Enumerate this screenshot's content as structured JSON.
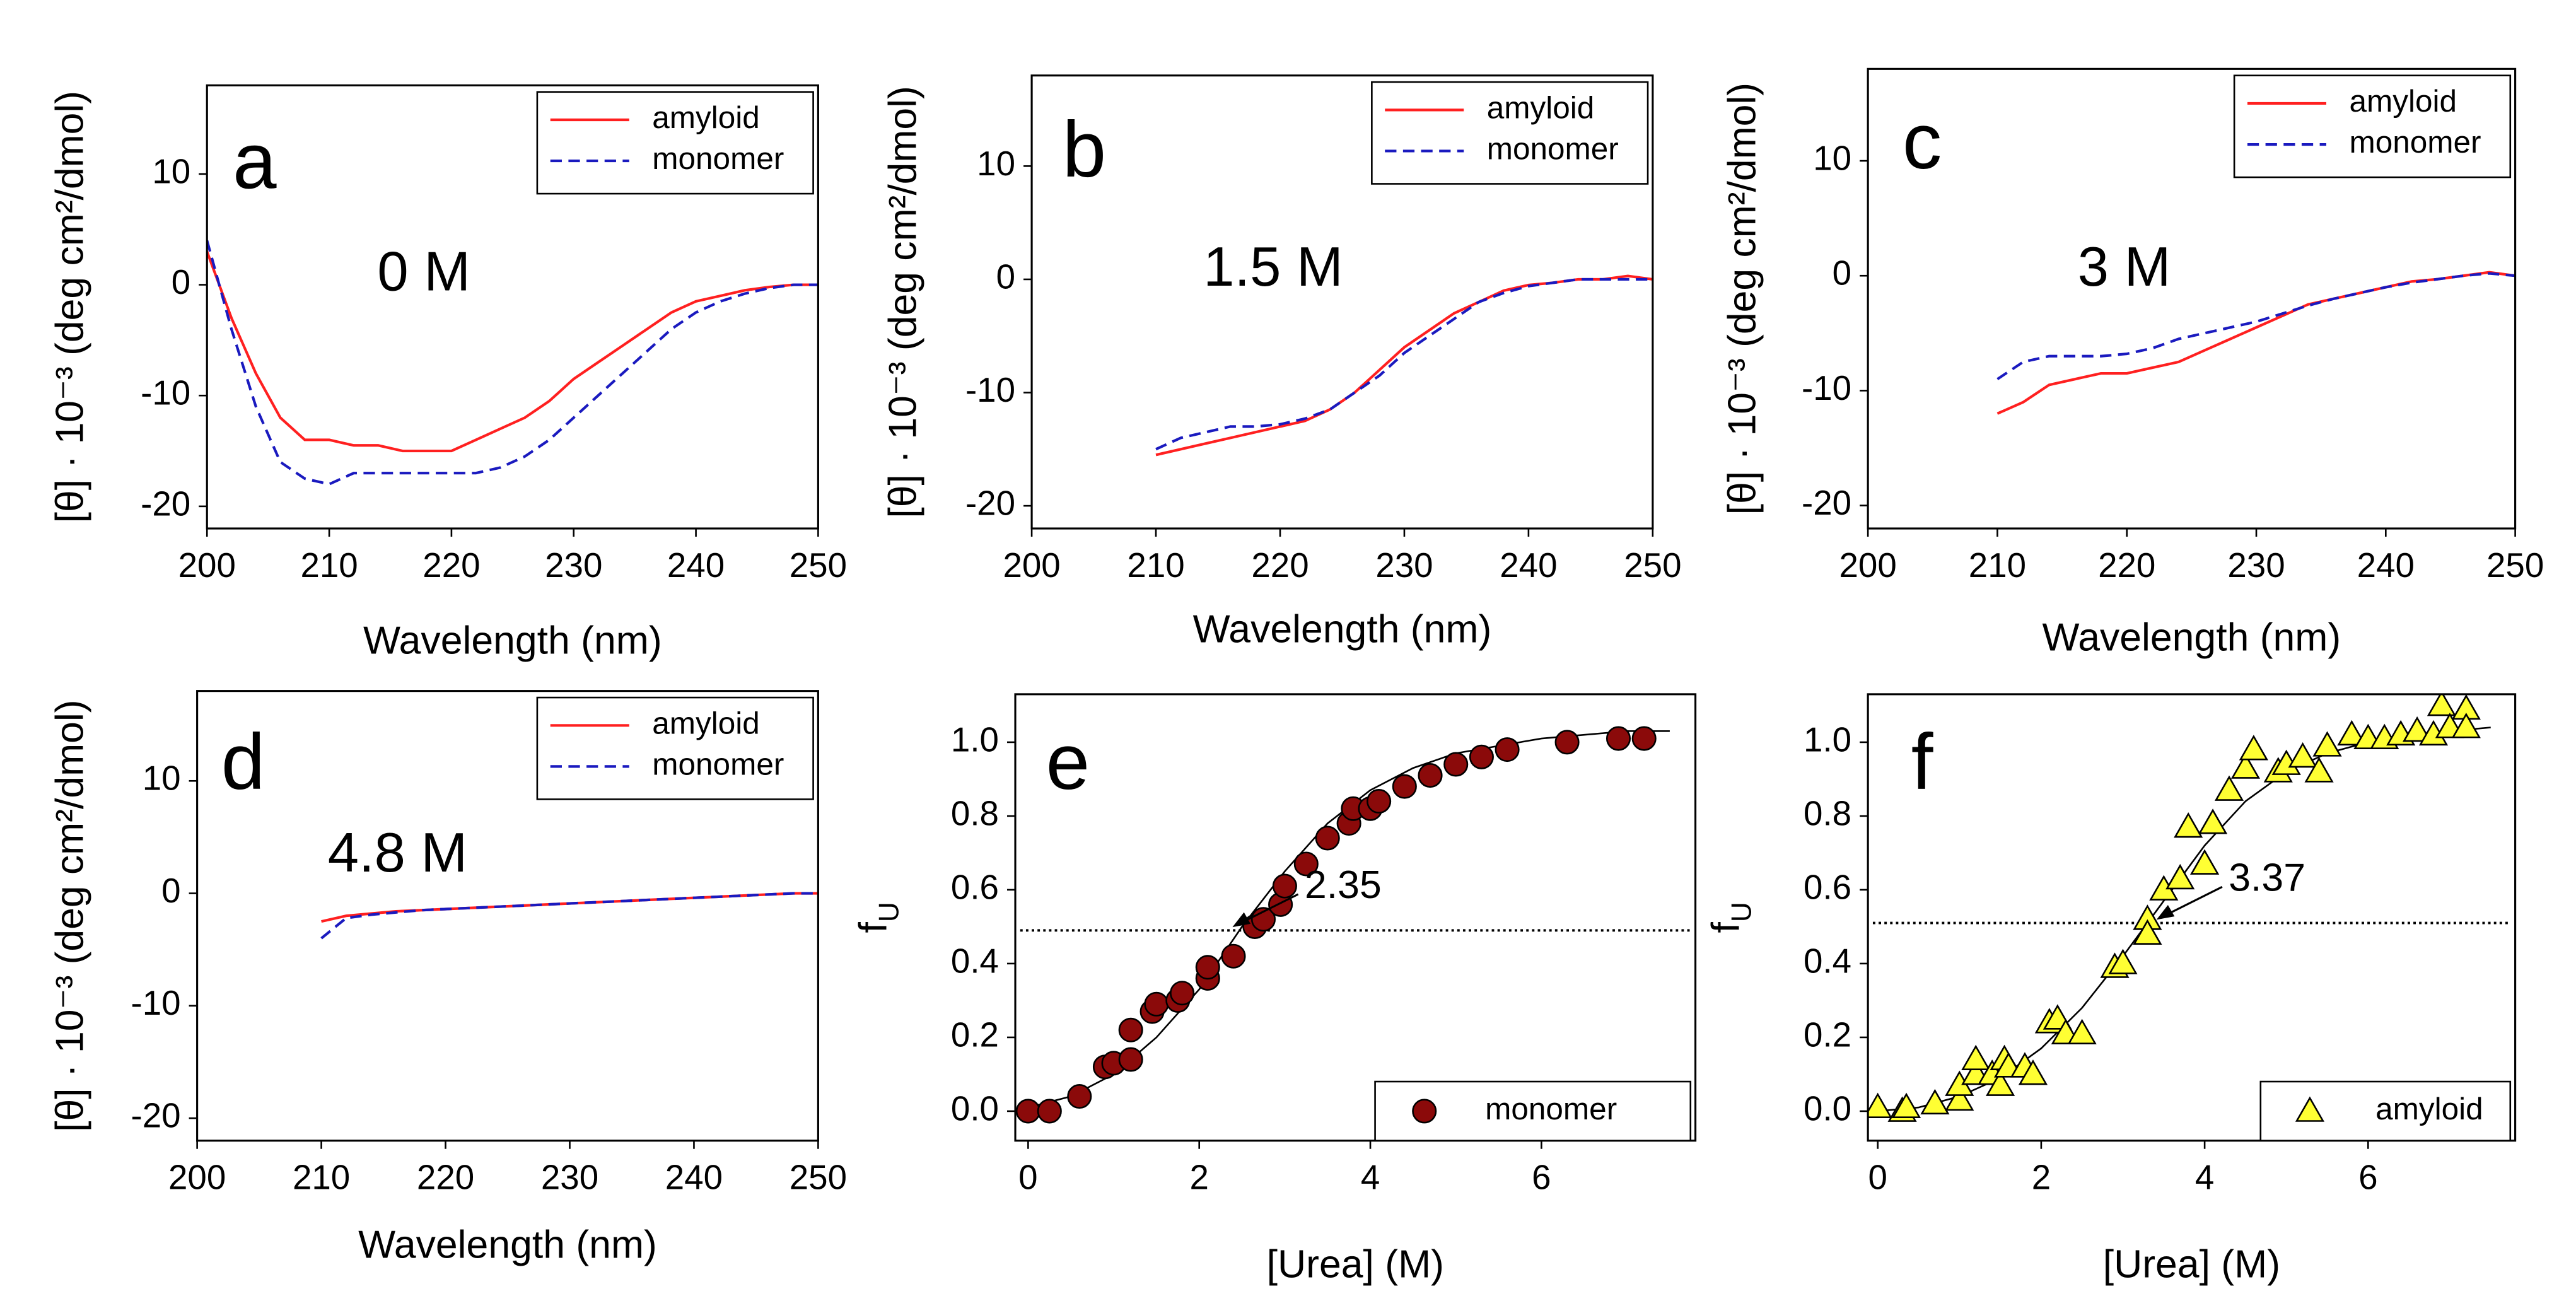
{
  "chart_data": [
    {
      "type": "line",
      "panel_label": "a",
      "annotation": "0 M",
      "xlabel": "Wavelength (nm)",
      "ylabel": "[θ] · 10⁻³ (deg cm²/dmol)",
      "xlim": [
        200,
        250
      ],
      "ylim": [
        -22,
        18
      ],
      "xticks": [
        200,
        210,
        220,
        230,
        240,
        250
      ],
      "yticks": [
        -20,
        -10,
        0,
        10
      ],
      "legend": "upper right",
      "x": [
        200,
        202,
        204,
        206,
        208,
        210,
        212,
        214,
        216,
        218,
        220,
        222,
        224,
        226,
        228,
        230,
        232,
        234,
        236,
        238,
        240,
        242,
        244,
        246,
        248,
        250
      ],
      "series": [
        {
          "name": "amyloid",
          "color": "#ff2020",
          "style": "solid",
          "values": [
            3,
            -3,
            -8,
            -12,
            -14,
            -14,
            -14.5,
            -14.5,
            -15,
            -15,
            -15,
            -14,
            -13,
            -12,
            -10.5,
            -8.5,
            -7,
            -5.5,
            -4,
            -2.5,
            -1.5,
            -1,
            -0.5,
            -0.2,
            0,
            0
          ]
        },
        {
          "name": "monomer",
          "color": "#1a1abf",
          "style": "dashed",
          "values": [
            4,
            -4,
            -11,
            -16,
            -17.5,
            -18,
            -17,
            -17,
            -17,
            -17,
            -17,
            -17,
            -16.5,
            -15.5,
            -14,
            -12,
            -10,
            -8,
            -6,
            -4,
            -2.5,
            -1.5,
            -0.8,
            -0.3,
            0,
            0
          ]
        }
      ]
    },
    {
      "type": "line",
      "panel_label": "b",
      "annotation": "1.5 M",
      "xlabel": "Wavelength (nm)",
      "ylabel": "[θ] · 10⁻³ (deg cm²/dmol)",
      "xlim": [
        200,
        250
      ],
      "ylim": [
        -22,
        18
      ],
      "xticks": [
        200,
        210,
        220,
        230,
        240,
        250
      ],
      "yticks": [
        -20,
        -10,
        0,
        10
      ],
      "legend": "upper right",
      "x": [
        210,
        212,
        214,
        216,
        218,
        220,
        222,
        224,
        226,
        228,
        230,
        232,
        234,
        236,
        238,
        240,
        242,
        244,
        246,
        248,
        250
      ],
      "series": [
        {
          "name": "amyloid",
          "color": "#ff2020",
          "style": "solid",
          "values": [
            -15.5,
            -15,
            -14.5,
            -14,
            -13.5,
            -13,
            -12.5,
            -11.5,
            -10,
            -8,
            -6,
            -4.5,
            -3,
            -2,
            -1,
            -0.5,
            -0.3,
            0,
            0,
            0.3,
            0
          ]
        },
        {
          "name": "monomer",
          "color": "#1a1abf",
          "style": "dashed",
          "values": [
            -15,
            -14,
            -13.5,
            -13,
            -13,
            -12.8,
            -12.3,
            -11.5,
            -10,
            -8.5,
            -6.5,
            -5,
            -3.5,
            -2,
            -1.2,
            -0.6,
            -0.3,
            0,
            0,
            0,
            0
          ]
        }
      ]
    },
    {
      "type": "line",
      "panel_label": "c",
      "annotation": "3 M",
      "xlabel": "Wavelength (nm)",
      "ylabel": "[θ] · 10⁻³ (deg cm²/dmol)",
      "xlim": [
        200,
        250
      ],
      "ylim": [
        -22,
        18
      ],
      "xticks": [
        200,
        210,
        220,
        230,
        240,
        250
      ],
      "yticks": [
        -20,
        -10,
        0,
        10
      ],
      "legend": "upper right",
      "x": [
        210,
        212,
        214,
        216,
        218,
        220,
        222,
        224,
        226,
        228,
        230,
        232,
        234,
        236,
        238,
        240,
        242,
        244,
        246,
        248,
        250
      ],
      "series": [
        {
          "name": "amyloid",
          "color": "#ff2020",
          "style": "solid",
          "values": [
            -12,
            -11,
            -9.5,
            -9,
            -8.5,
            -8.5,
            -8,
            -7.5,
            -6.5,
            -5.5,
            -4.5,
            -3.5,
            -2.5,
            -2,
            -1.5,
            -1,
            -0.5,
            -0.3,
            0,
            0.3,
            0
          ]
        },
        {
          "name": "monomer",
          "color": "#1a1abf",
          "style": "dashed",
          "values": [
            -9,
            -7.5,
            -7,
            -7,
            -7,
            -6.8,
            -6.3,
            -5.5,
            -5,
            -4.5,
            -4,
            -3.3,
            -2.6,
            -2,
            -1.5,
            -1,
            -0.6,
            -0.3,
            0,
            0.2,
            0
          ]
        }
      ]
    },
    {
      "type": "line",
      "panel_label": "d",
      "annotation": "4.8 M",
      "xlabel": "Wavelength (nm)",
      "ylabel": "[θ] · 10⁻³ (deg cm²/dmol)",
      "xlim": [
        200,
        250
      ],
      "ylim": [
        -22,
        18
      ],
      "xticks": [
        200,
        210,
        220,
        230,
        240,
        250
      ],
      "yticks": [
        -20,
        -10,
        0,
        10
      ],
      "legend": "upper right",
      "x": [
        210,
        212,
        214,
        216,
        218,
        220,
        222,
        224,
        226,
        228,
        230,
        232,
        234,
        236,
        238,
        240,
        242,
        244,
        246,
        248,
        250
      ],
      "series": [
        {
          "name": "amyloid",
          "color": "#ff2020",
          "style": "solid",
          "values": [
            -2.5,
            -2,
            -1.8,
            -1.6,
            -1.5,
            -1.4,
            -1.3,
            -1.2,
            -1.1,
            -1,
            -0.9,
            -0.8,
            -0.7,
            -0.6,
            -0.5,
            -0.4,
            -0.3,
            -0.2,
            -0.1,
            0,
            0
          ]
        },
        {
          "name": "monomer",
          "color": "#1a1abf",
          "style": "dashed",
          "values": [
            -4,
            -2.2,
            -1.9,
            -1.7,
            -1.5,
            -1.4,
            -1.3,
            -1.2,
            -1.1,
            -1,
            -0.9,
            -0.8,
            -0.7,
            -0.6,
            -0.5,
            -0.4,
            -0.3,
            -0.2,
            -0.1,
            0,
            0
          ]
        }
      ]
    },
    {
      "type": "scatter",
      "panel_label": "e",
      "xlabel": "[Urea] (M)",
      "ylabel": "f",
      "ylabel_sub": "U",
      "midpoint": 2.35,
      "reference_line": 0.49,
      "xlim": [
        -0.15,
        7.8
      ],
      "ylim": [
        -0.08,
        1.13
      ],
      "xticks": [
        0,
        2,
        4,
        6
      ],
      "yticks": [
        {
          "value": 0,
          "label": "0.0"
        },
        0.2,
        0.4,
        0.6,
        0.8,
        {
          "value": 1,
          "label": "1.0"
        }
      ],
      "legend": "lower right",
      "series": [
        {
          "name": "monomer",
          "color": "#8b0a0a",
          "marker": "circle",
          "x": [
            0,
            0.25,
            0.6,
            0.9,
            1.0,
            1.2,
            1.2,
            1.45,
            1.5,
            1.75,
            1.8,
            2.1,
            2.1,
            2.4,
            2.65,
            2.75,
            2.95,
            3.0,
            3.25,
            3.5,
            3.75,
            3.8,
            4.0,
            4.1,
            4.4,
            4.7,
            5.0,
            5.3,
            5.6,
            6.3,
            6.9,
            7.2
          ],
          "values": [
            0,
            0,
            0.04,
            0.12,
            0.13,
            0.22,
            0.14,
            0.27,
            0.29,
            0.3,
            0.32,
            0.36,
            0.39,
            0.42,
            0.5,
            0.52,
            0.56,
            0.61,
            0.67,
            0.74,
            0.78,
            0.82,
            0.82,
            0.84,
            0.88,
            0.91,
            0.94,
            0.96,
            0.98,
            1.0,
            1.01,
            1.01
          ]
        }
      ],
      "fit": {
        "x": [
          0,
          0.5,
          1,
          1.5,
          2,
          2.5,
          3,
          3.5,
          4,
          4.5,
          5,
          5.5,
          6,
          6.5,
          7,
          7.5
        ],
        "values": [
          0.01,
          0.04,
          0.1,
          0.2,
          0.33,
          0.5,
          0.65,
          0.78,
          0.87,
          0.93,
          0.97,
          0.99,
          1.01,
          1.02,
          1.03,
          1.03
        ]
      }
    },
    {
      "type": "scatter",
      "panel_label": "f",
      "xlabel": "[Urea] (M)",
      "ylabel": "f",
      "ylabel_sub": "U",
      "midpoint": 3.37,
      "reference_line": 0.51,
      "xlim": [
        -0.12,
        7.8
      ],
      "ylim": [
        -0.08,
        1.13
      ],
      "xticks": [
        0,
        2,
        4,
        6
      ],
      "yticks": [
        {
          "value": 0,
          "label": "0.0"
        },
        0.2,
        0.4,
        0.6,
        0.8,
        {
          "value": 1,
          "label": "1.0"
        }
      ],
      "legend": "lower right",
      "series": [
        {
          "name": "amyloid",
          "color": "#ffff33",
          "marker": "triangle",
          "x": [
            0,
            0.3,
            0.35,
            0.7,
            1.0,
            1.0,
            1.2,
            1.2,
            1.4,
            1.5,
            1.55,
            1.6,
            1.8,
            1.9,
            2.1,
            2.2,
            2.3,
            2.5,
            2.9,
            3.0,
            3.3,
            3.3,
            3.5,
            3.7,
            3.8,
            4.0,
            4.1,
            4.3,
            4.5,
            4.6,
            4.9,
            5.0,
            5.2,
            5.4,
            5.5,
            5.8,
            6.0,
            6.2,
            6.4,
            6.6,
            6.8,
            6.9,
            7.0,
            7.2,
            7.2
          ],
          "values": [
            0.01,
            0,
            0.01,
            0.02,
            0.03,
            0.07,
            0.1,
            0.14,
            0.1,
            0.07,
            0.14,
            0.12,
            0.12,
            0.1,
            0.24,
            0.25,
            0.21,
            0.21,
            0.39,
            0.4,
            0.52,
            0.48,
            0.6,
            0.63,
            0.77,
            0.67,
            0.78,
            0.87,
            0.93,
            0.98,
            0.92,
            0.94,
            0.96,
            0.92,
            0.99,
            1.02,
            1.01,
            1.01,
            1.02,
            1.03,
            1.02,
            1.1,
            1.04,
            1.09,
            1.04
          ]
        }
      ],
      "fit": {
        "x": [
          0,
          0.5,
          1,
          1.5,
          2,
          2.5,
          3,
          3.5,
          4,
          4.5,
          5,
          5.5,
          6,
          6.5,
          7,
          7.5
        ],
        "values": [
          0,
          0.01,
          0.04,
          0.09,
          0.17,
          0.28,
          0.42,
          0.57,
          0.72,
          0.84,
          0.92,
          0.97,
          1.0,
          1.02,
          1.03,
          1.04
        ]
      }
    }
  ]
}
